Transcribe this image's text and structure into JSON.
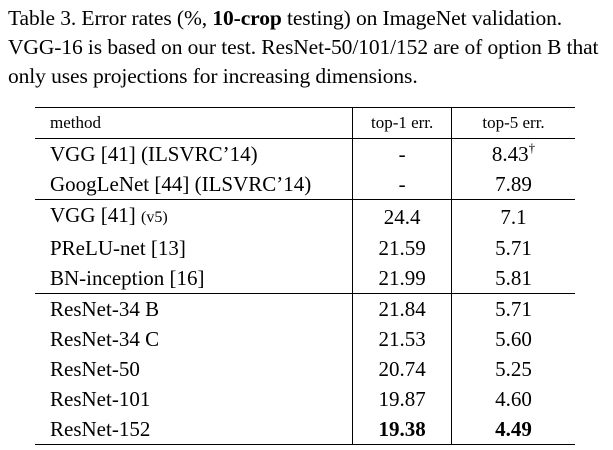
{
  "caption": {
    "part1": "Table 3. Error rates (%, ",
    "bold": "10-crop",
    "part2": " testing) on ImageNet validation. VGG-16 is based on our test. ResNet-50/101/152 are of option B that only uses projections for increasing dimensions."
  },
  "table": {
    "headers": {
      "method": "method",
      "top1": "top-1 err.",
      "top5": "top-5 err."
    },
    "rows": [
      {
        "method": "VGG [41] (ILSVRC’14)",
        "method_suffix": "",
        "top1": "-",
        "top5": "8.43",
        "top5_sup": "†"
      },
      {
        "method": "GoogLeNet [44] (ILSVRC’14)",
        "method_suffix": "",
        "top1": "-",
        "top5": "7.89",
        "top5_sup": ""
      },
      {
        "method": "VGG [41] ",
        "method_suffix": "(v5)",
        "top1": "24.4",
        "top5": "7.1",
        "top5_sup": ""
      },
      {
        "method": "PReLU-net [13]",
        "method_suffix": "",
        "top1": "21.59",
        "top5": "5.71",
        "top5_sup": ""
      },
      {
        "method": "BN-inception [16]",
        "method_suffix": "",
        "top1": "21.99",
        "top5": "5.81",
        "top5_sup": ""
      },
      {
        "method": "ResNet-34 B",
        "method_suffix": "",
        "top1": "21.84",
        "top5": "5.71",
        "top5_sup": ""
      },
      {
        "method": "ResNet-34 C",
        "method_suffix": "",
        "top1": "21.53",
        "top5": "5.60",
        "top5_sup": ""
      },
      {
        "method": "ResNet-50",
        "method_suffix": "",
        "top1": "20.74",
        "top5": "5.25",
        "top5_sup": ""
      },
      {
        "method": "ResNet-101",
        "method_suffix": "",
        "top1": "19.87",
        "top5": "4.60",
        "top5_sup": ""
      },
      {
        "method": "ResNet-152",
        "method_suffix": "",
        "top1": "19.38",
        "top5": "4.49",
        "top5_sup": ""
      }
    ]
  }
}
